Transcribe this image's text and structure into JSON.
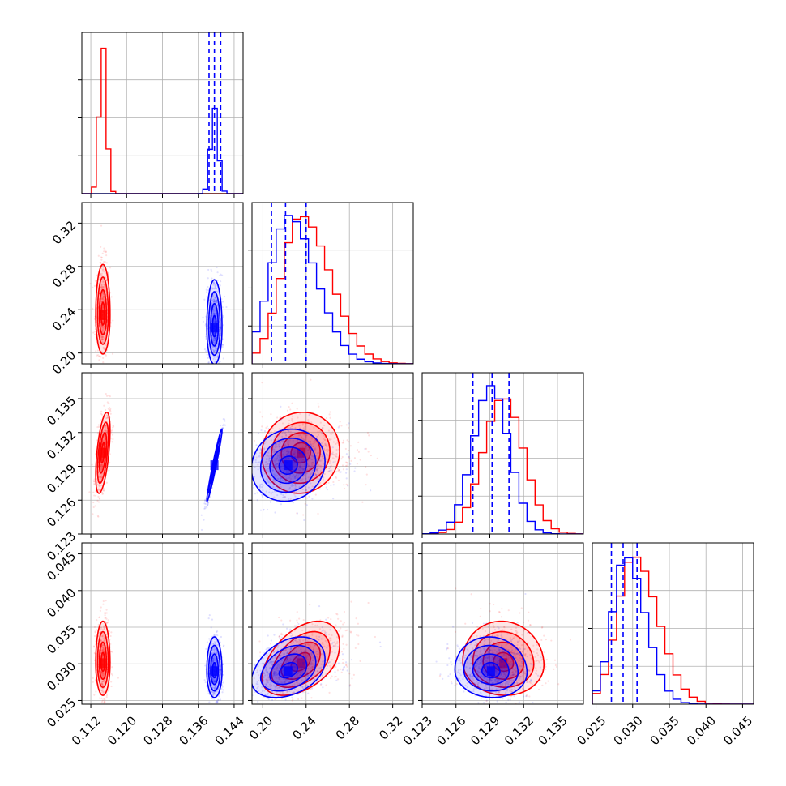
{
  "colors": {
    "series_a": "#ff0000",
    "series_b": "#0000ff",
    "grid": "#b0b0b0",
    "frame": "#000000"
  },
  "chart_data": {
    "type": "corner",
    "grid": true,
    "parameters": [
      {
        "range": [
          0.11,
          0.146
        ],
        "ticks": [
          "0.112",
          "0.120",
          "0.128",
          "0.136",
          "0.144"
        ],
        "tick_values": [
          0.112,
          0.12,
          0.128,
          0.136,
          0.144
        ]
      },
      {
        "range": [
          0.19,
          0.339
        ],
        "ticks": [
          "0.20",
          "0.24",
          "0.28",
          "0.32"
        ],
        "tick_values": [
          0.2,
          0.24,
          0.28,
          0.32
        ]
      },
      {
        "range": [
          0.123,
          0.1373
        ],
        "ticks": [
          "0.123",
          "0.126",
          "0.129",
          "0.132",
          "0.135"
        ],
        "tick_values": [
          0.123,
          0.126,
          0.129,
          0.132,
          0.135
        ]
      },
      {
        "range": [
          0.0245,
          0.0465
        ],
        "ticks": [
          "0.025",
          "0.030",
          "0.035",
          "0.040",
          "0.045"
        ],
        "tick_values": [
          0.025,
          0.03,
          0.035,
          0.04,
          0.045
        ]
      }
    ],
    "series": [
      {
        "color": "#ff0000",
        "means": [
          0.1147,
          0.235,
          0.1302,
          0.0301
        ],
        "sigmas": [
          0.0008,
          0.018,
          0.0018,
          0.0022
        ],
        "correlations": [
          [
            1,
            0,
            0.55,
            0
          ],
          [
            0,
            1,
            0.05,
            0.45
          ],
          [
            0.55,
            0.05,
            1,
            -0.05
          ],
          [
            0,
            0.45,
            -0.05,
            1
          ]
        ],
        "hist_max": [
          1.0,
          0.33,
          0.36,
          0.33
        ],
        "dashed_quantiles": []
      },
      {
        "color": "#0000ff",
        "means": [
          0.1396,
          0.2235,
          0.1291,
          0.029
        ],
        "sigmas": [
          0.00085,
          0.017,
          0.0016,
          0.0018
        ],
        "correlations": [
          [
            1,
            0,
            0.97,
            0
          ],
          [
            0,
            1,
            0.1,
            0.35
          ],
          [
            0.97,
            0.1,
            1,
            -0.05
          ],
          [
            0,
            0.35,
            -0.05,
            1
          ]
        ],
        "hist_max": [
          0.58,
          0.33,
          0.39,
          0.33
        ],
        "dashed_quantiles": [
          [
            0.1384,
            0.1396,
            0.141
          ],
          [
            0.208,
            0.221,
            0.24
          ],
          [
            0.1275,
            0.1292,
            0.1307
          ],
          [
            0.0271,
            0.0287,
            0.0306
          ]
        ]
      }
    ]
  }
}
